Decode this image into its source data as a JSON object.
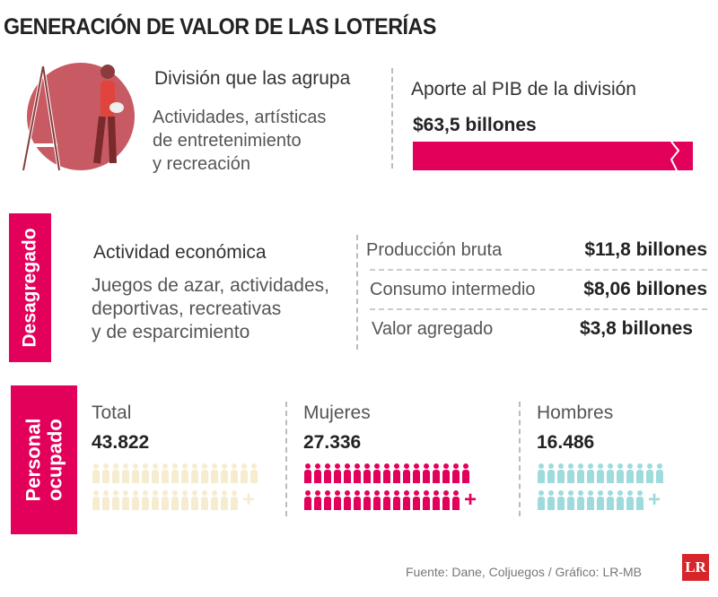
{
  "title": "GENERACIÓN DE VALOR DE LAS LOTERÍAS",
  "division": {
    "heading": "División que las agrupa",
    "lines": [
      "Actividades, artísticas",
      "de entretenimiento",
      "y recreación"
    ]
  },
  "pib": {
    "heading": "Aporte al PIB de la división",
    "value": "$63,5 billones"
  },
  "desagregado": {
    "label": "Desagregado",
    "heading": "Actividad económica",
    "lines": [
      "Juegos de azar, actividades,",
      "deportivas, recreativas",
      "y de esparcimiento"
    ],
    "items": [
      {
        "label": "Producción bruta",
        "value": "$11,8 billones"
      },
      {
        "label": "Consumo intermedio",
        "value": "$8,06 billones"
      },
      {
        "label": "Valor agregado",
        "value": "$3,8 billones"
      }
    ]
  },
  "personal": {
    "label_1": "Personal",
    "label_2": "ocupado",
    "groups": [
      {
        "label": "Total",
        "value": "43.822",
        "color": "#f6ecd0",
        "rows": [
          17,
          15
        ]
      },
      {
        "label": "Mujeres",
        "value": "27.336",
        "color": "#e2005a",
        "rows": [
          17,
          16
        ]
      },
      {
        "label": "Hombres",
        "value": "16.486",
        "color": "#9fdbdc",
        "rows": [
          13,
          11
        ]
      }
    ]
  },
  "source": "Fuente:  Dane, Coljuegos / Gráfico: LR-MB",
  "logo": "LR",
  "colors": {
    "accent": "#e2005a",
    "illustration": "#c85a64"
  }
}
